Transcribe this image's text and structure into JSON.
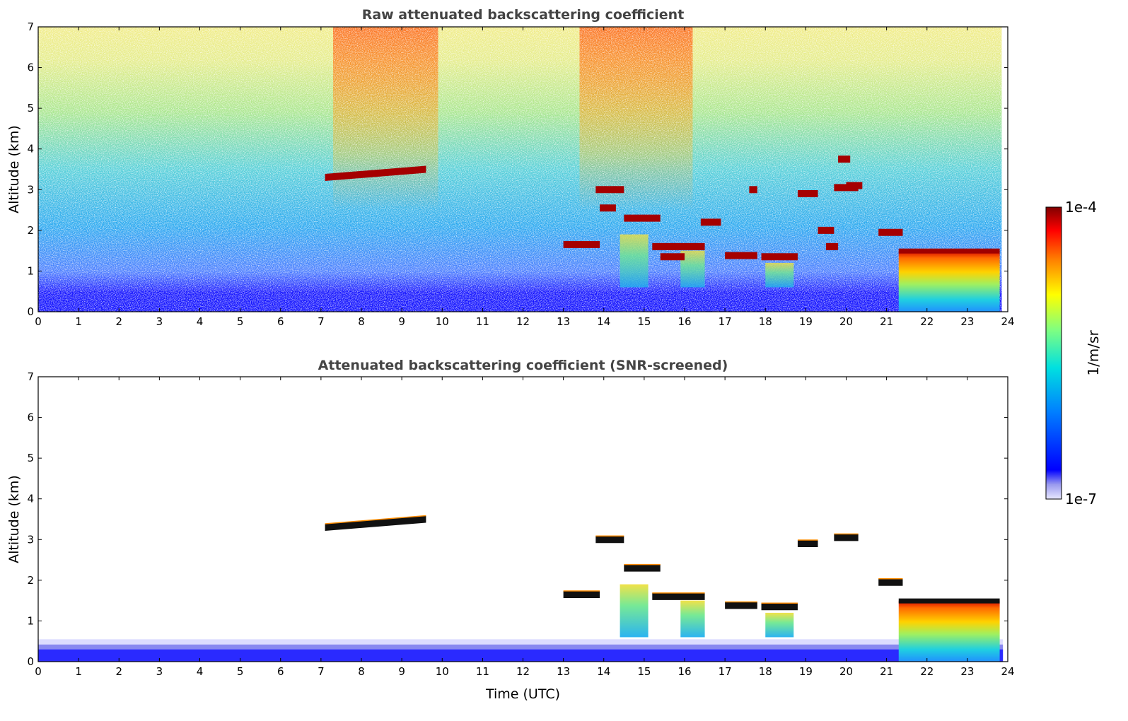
{
  "chart_data": [
    {
      "type": "heatmap",
      "title": "Raw attenuated backscattering coefficient",
      "xlabel": "",
      "ylabel": "Altitude (km)",
      "xlim": [
        0,
        24
      ],
      "ylim": [
        0,
        7
      ],
      "xticks": [
        "0",
        "1",
        "2",
        "3",
        "4",
        "5",
        "6",
        "7",
        "8",
        "9",
        "10",
        "11",
        "12",
        "13",
        "14",
        "15",
        "16",
        "17",
        "18",
        "19",
        "20",
        "21",
        "22",
        "23",
        "24"
      ],
      "yticks": [
        "0",
        "1",
        "2",
        "3",
        "4",
        "5",
        "6",
        "7"
      ],
      "background": "noisy signal increasing with altitude (blue near ground to yellow/green aloft), stronger (orange) during 7–10 UTC and 13.5–16 UTC",
      "features": [
        {
          "kind": "cloud",
          "t_start": 7.1,
          "t_end": 9.6,
          "alt_start_km": 3.3,
          "alt_end_km": 3.5
        },
        {
          "kind": "cloud",
          "t_start": 13.0,
          "t_end": 13.9,
          "alt_km": 1.65
        },
        {
          "kind": "cloud",
          "t_start": 13.8,
          "t_end": 14.5,
          "alt_km": 3.0
        },
        {
          "kind": "cloud",
          "t_start": 13.9,
          "t_end": 14.3,
          "alt_km": 2.55
        },
        {
          "kind": "cloud",
          "t_start": 14.5,
          "t_end": 15.4,
          "alt_km": 2.3
        },
        {
          "kind": "cloud",
          "t_start": 15.2,
          "t_end": 16.5,
          "alt_km": 1.6
        },
        {
          "kind": "cloud",
          "t_start": 15.4,
          "t_end": 16.0,
          "alt_km": 1.35
        },
        {
          "kind": "cloud",
          "t_start": 16.4,
          "t_end": 16.9,
          "alt_km": 2.2
        },
        {
          "kind": "cloud",
          "t_start": 17.0,
          "t_end": 17.8,
          "alt_km": 1.38
        },
        {
          "kind": "cloud",
          "t_start": 17.6,
          "t_end": 17.8,
          "alt_km": 3.0
        },
        {
          "kind": "cloud",
          "t_start": 17.9,
          "t_end": 18.8,
          "alt_km": 1.35
        },
        {
          "kind": "cloud",
          "t_start": 18.8,
          "t_end": 19.3,
          "alt_km": 2.9
        },
        {
          "kind": "cloud",
          "t_start": 19.3,
          "t_end": 19.7,
          "alt_km": 2.0
        },
        {
          "kind": "cloud",
          "t_start": 19.5,
          "t_end": 19.8,
          "alt_km": 1.6
        },
        {
          "kind": "cloud",
          "t_start": 19.7,
          "t_end": 20.3,
          "alt_km": 3.05
        },
        {
          "kind": "cloud",
          "t_start": 19.8,
          "t_end": 20.1,
          "alt_km": 3.75
        },
        {
          "kind": "cloud",
          "t_start": 20.0,
          "t_end": 20.4,
          "alt_km": 3.1
        },
        {
          "kind": "cloud",
          "t_start": 20.8,
          "t_end": 21.4,
          "alt_km": 1.95
        },
        {
          "kind": "precipitating cloud",
          "t_start": 21.3,
          "t_end": 23.8,
          "alt_km": 1.5,
          "reaches_ground": true
        }
      ]
    },
    {
      "type": "heatmap",
      "title": "Attenuated backscattering coefficient (SNR-screened)",
      "xlabel": "Time (UTC)",
      "ylabel": "Altitude (km)",
      "xlim": [
        0,
        24
      ],
      "ylim": [
        0,
        7
      ],
      "xticks": [
        "0",
        "1",
        "2",
        "3",
        "4",
        "5",
        "6",
        "7",
        "8",
        "9",
        "10",
        "11",
        "12",
        "13",
        "14",
        "15",
        "16",
        "17",
        "18",
        "19",
        "20",
        "21",
        "22",
        "23",
        "24"
      ],
      "yticks": [
        "0",
        "1",
        "2",
        "3",
        "4",
        "5",
        "6",
        "7"
      ],
      "background": "white (screened out) above ~0.5 km; blue boundary layer below ~0.5 km",
      "features": [
        {
          "kind": "cloud",
          "t_start": 7.1,
          "t_end": 9.6,
          "alt_start_km": 3.3,
          "alt_end_km": 3.5
        },
        {
          "kind": "cloud",
          "t_start": 13.0,
          "t_end": 13.9,
          "alt_km": 1.65
        },
        {
          "kind": "cloud",
          "t_start": 13.8,
          "t_end": 14.5,
          "alt_km": 3.0
        },
        {
          "kind": "cloud",
          "t_start": 14.5,
          "t_end": 15.4,
          "alt_km": 2.3
        },
        {
          "kind": "cloud",
          "t_start": 15.2,
          "t_end": 16.5,
          "alt_km": 1.6
        },
        {
          "kind": "cloud",
          "t_start": 17.0,
          "t_end": 17.8,
          "alt_km": 1.38
        },
        {
          "kind": "cloud",
          "t_start": 17.9,
          "t_end": 18.8,
          "alt_km": 1.35
        },
        {
          "kind": "cloud",
          "t_start": 18.8,
          "t_end": 19.3,
          "alt_km": 2.9
        },
        {
          "kind": "cloud",
          "t_start": 19.7,
          "t_end": 20.3,
          "alt_km": 3.05
        },
        {
          "kind": "cloud",
          "t_start": 20.8,
          "t_end": 21.4,
          "alt_km": 1.95
        },
        {
          "kind": "precipitating cloud",
          "t_start": 21.3,
          "t_end": 23.8,
          "alt_km": 1.5,
          "reaches_ground": true
        }
      ]
    }
  ],
  "colorbar": {
    "label": "1/m/sr",
    "max_label": "1e-4",
    "min_label": "1e-7",
    "scale": "log",
    "colors": [
      "#e8e8ff",
      "#9999ee",
      "#0000ff",
      "#0080ff",
      "#00e0e0",
      "#80ff80",
      "#ffff00",
      "#ff8000",
      "#ff0000",
      "#800000"
    ]
  }
}
